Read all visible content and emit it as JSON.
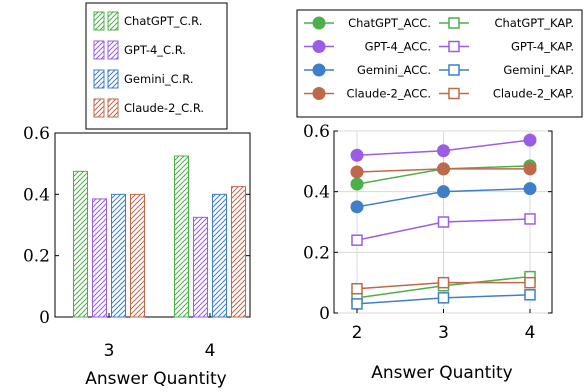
{
  "chart_data": [
    {
      "type": "bar",
      "xlabel": "Answer Quantity",
      "ylabel": "",
      "categories": [
        "3",
        "4"
      ],
      "ylim": [
        0,
        0.6
      ],
      "yticks": [
        "0",
        "0.2",
        "0.4",
        "0.6"
      ],
      "grid": false,
      "legend_placement": "top",
      "series": [
        {
          "name": "ChatGPT_C.R.",
          "color": "#4daf4a",
          "values": [
            0.475,
            0.525
          ]
        },
        {
          "name": "GPT-4_C.R.",
          "color": "#9b5de5",
          "values": [
            0.385,
            0.325
          ]
        },
        {
          "name": "Gemini_C.R.",
          "color": "#3f7fc7",
          "values": [
            0.4,
            0.4
          ]
        },
        {
          "name": "Claude-2_C.R.",
          "color": "#c0684a",
          "values": [
            0.4,
            0.425
          ]
        }
      ]
    },
    {
      "type": "line",
      "xlabel": "Answer Quantity",
      "ylabel": "",
      "x": [
        "2",
        "3",
        "4"
      ],
      "ylim": [
        0,
        0.6
      ],
      "yticks": [
        "0",
        "0.2",
        "0.4",
        "0.6"
      ],
      "grid": true,
      "legend_placement": "top",
      "series": [
        {
          "name": "ChatGPT_ACC.",
          "color": "#4daf4a",
          "marker": "circle",
          "values": [
            0.425,
            0.475,
            0.485
          ]
        },
        {
          "name": "ChatGPT_KAP.",
          "color": "#4daf4a",
          "marker": "square",
          "values": [
            0.05,
            0.09,
            0.12
          ]
        },
        {
          "name": "GPT-4_ACC.",
          "color": "#9b5de5",
          "marker": "circle",
          "values": [
            0.52,
            0.535,
            0.57
          ]
        },
        {
          "name": "GPT-4_KAP.",
          "color": "#9b5de5",
          "marker": "square",
          "values": [
            0.24,
            0.3,
            0.31
          ]
        },
        {
          "name": "Gemini_ACC.",
          "color": "#3f7fc7",
          "marker": "circle",
          "values": [
            0.35,
            0.4,
            0.41
          ]
        },
        {
          "name": "Gemini_KAP.",
          "color": "#3f7fc7",
          "marker": "square",
          "values": [
            0.03,
            0.05,
            0.06
          ]
        },
        {
          "name": "Claude-2_ACC.",
          "color": "#c0684a",
          "marker": "circle",
          "values": [
            0.465,
            0.475,
            0.475
          ]
        },
        {
          "name": "Claude-2_KAP.",
          "color": "#c0684a",
          "marker": "square",
          "values": [
            0.08,
            0.1,
            0.1
          ]
        }
      ]
    }
  ]
}
